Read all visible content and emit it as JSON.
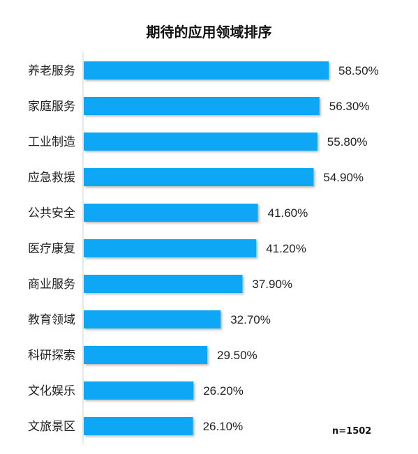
{
  "chart_data": {
    "type": "bar",
    "orientation": "horizontal",
    "title": "期待的应用领域排序",
    "categories": [
      "养老服务",
      "家庭服务",
      "工业制造",
      "应急救援",
      "公共安全",
      "医疗康复",
      "商业服务",
      "教育领域",
      "科研探索",
      "文化娱乐",
      "文旅景区"
    ],
    "values": [
      58.5,
      56.3,
      55.8,
      54.9,
      41.6,
      41.2,
      37.9,
      32.7,
      29.5,
      26.2,
      26.1
    ],
    "value_labels": [
      "58.50%",
      "56.30%",
      "55.80%",
      "54.90%",
      "41.60%",
      "41.20%",
      "37.90%",
      "32.70%",
      "29.50%",
      "26.20%",
      "26.10%"
    ],
    "xlabel": "",
    "ylabel": "",
    "xlim": [
      0,
      70
    ],
    "grid": false,
    "bar_color": "#0fa7f5",
    "note": "n=1502"
  }
}
